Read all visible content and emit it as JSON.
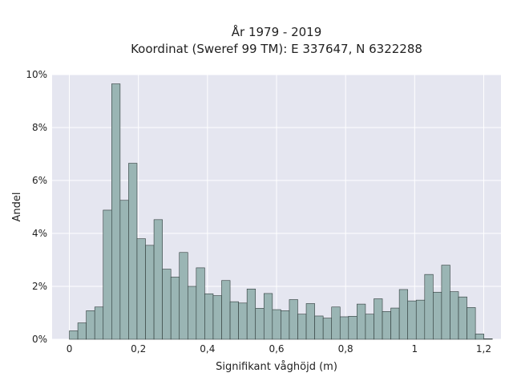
{
  "chart_data": {
    "type": "bar",
    "title_line1": "År 1979 - 2019",
    "title_line2": "Koordinat (Sweref 99 TM): E 337647, N 6322288",
    "xlabel": "Signifikant våghöjd (m)",
    "ylabel": "Andel",
    "xlim": [
      -0.05,
      1.25
    ],
    "ylim": [
      0,
      10
    ],
    "xticks": [
      0,
      0.2,
      0.4,
      0.6,
      0.8,
      1.0,
      1.2
    ],
    "xtick_labels": [
      "0",
      "0,2",
      "0,4",
      "0,6",
      "0,8",
      "1",
      "1,2"
    ],
    "yticks": [
      0,
      2,
      4,
      6,
      8,
      10
    ],
    "ytick_labels": [
      "0%",
      "2%",
      "4%",
      "6%",
      "8%",
      "10%"
    ],
    "bin_start": 0.0,
    "bin_width": 0.0245,
    "values": [
      0.32,
      0.62,
      1.08,
      1.22,
      4.88,
      9.65,
      5.25,
      6.65,
      3.8,
      3.55,
      4.52,
      2.65,
      2.35,
      3.28,
      2.0,
      2.7,
      1.72,
      1.65,
      2.22,
      1.42,
      1.37,
      1.9,
      1.17,
      1.73,
      1.12,
      1.08,
      1.5,
      0.95,
      1.35,
      0.88,
      0.8,
      1.22,
      0.85,
      0.87,
      1.33,
      0.95,
      1.53,
      1.05,
      1.18,
      1.88,
      1.45,
      1.48,
      2.45,
      1.78,
      2.8,
      1.8,
      1.6,
      1.2,
      0.2,
      0.02
    ],
    "grid": true,
    "colors": {
      "bar_fill": "#9ab5b4",
      "bar_edge": "#2f3b3a",
      "plot_bg": "#e5e6f0",
      "grid": "#ffffff"
    }
  }
}
